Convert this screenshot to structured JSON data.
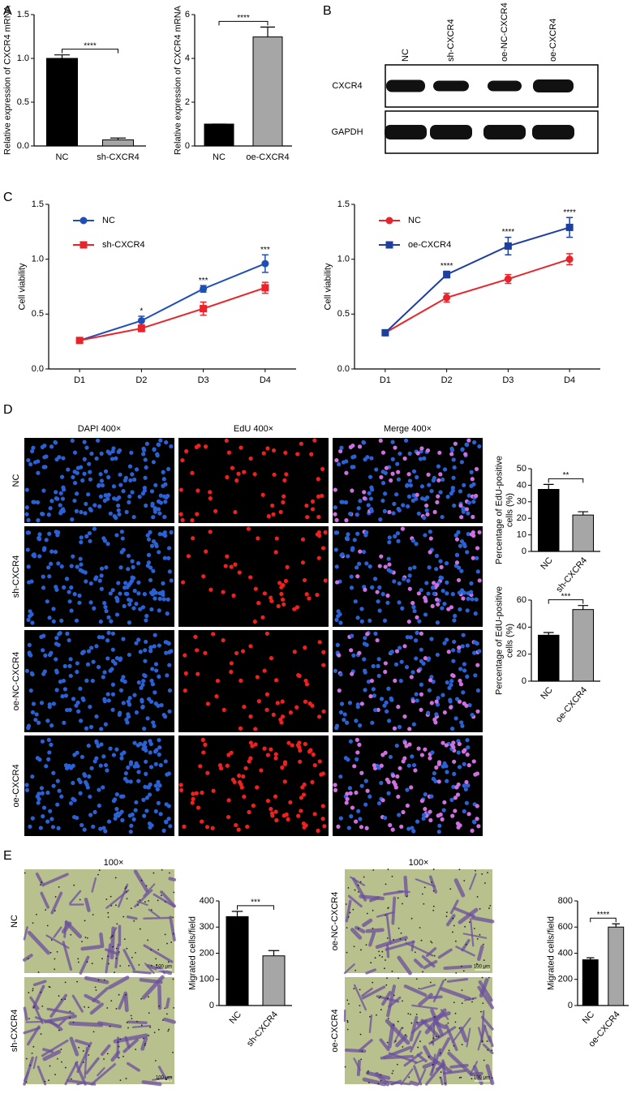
{
  "panel_labels": [
    "A",
    "B",
    "C",
    "D",
    "E"
  ],
  "blot": {
    "lanes": [
      "NC",
      "sh-CXCR4",
      "oe-NC-CXCR4",
      "oe-CXCR4"
    ],
    "rows": [
      "CXCR4",
      "GAPDH"
    ]
  },
  "fluorescence": {
    "columns": [
      "DAPI 400×",
      "EdU 400×",
      "Merge 400×"
    ],
    "rows": [
      "NC",
      "sh-CXCR4",
      "oe-NC-CXCR4",
      "oe-CXCR4"
    ]
  },
  "migration": {
    "magnification": [
      "100×",
      "100×"
    ],
    "rows": [
      "NC",
      "sh-CXCR4",
      "oe-NC-CXCR4",
      "oe-CXCR4"
    ],
    "scale_bar": "100 μm"
  },
  "chart_data": [
    {
      "type": "bar",
      "y_label": "Relative expression of CXCR4 mRNA",
      "categories": [
        "NC",
        "sh-CXCR4"
      ],
      "values": [
        1.0,
        0.07
      ],
      "errors": [
        0.04,
        0.02
      ],
      "colors": [
        "#000000",
        "#a6a6a6"
      ],
      "ylim": [
        0,
        1.5
      ],
      "yticks": [
        {
          "value": 0,
          "label": "0.0"
        },
        0.5,
        {
          "value": 1,
          "label": "1.0"
        },
        1.5
      ],
      "annotation": "****"
    },
    {
      "type": "bar",
      "y_label": "Relative expression of CXCR4 mRNA",
      "categories": [
        "NC",
        "oe-CXCR4"
      ],
      "values": [
        1.0,
        4.98
      ],
      "errors": [
        0,
        0.45
      ],
      "colors": [
        "#000000",
        "#a6a6a6"
      ],
      "ylim": [
        0,
        6
      ],
      "yticks": [
        0,
        2,
        4,
        6
      ],
      "annotation": "****"
    },
    {
      "type": "line",
      "y_label": "Cell viability",
      "categories": [
        "D1",
        "D2",
        "D3",
        "D4"
      ],
      "ylim": [
        0,
        1.5
      ],
      "yticks": [
        {
          "value": 0,
          "label": "0.0"
        },
        0.5,
        {
          "value": 1,
          "label": "1.0"
        },
        1.5
      ],
      "series": [
        {
          "name": "NC",
          "color": "#1f4fb5",
          "marker": "circle",
          "values": [
            0.26,
            0.44,
            0.73,
            0.96
          ],
          "errors": [
            0.02,
            0.04,
            0.03,
            0.08
          ]
        },
        {
          "name": "sh-CXCR4",
          "color": "#e8242a",
          "marker": "square",
          "values": [
            0.26,
            0.37,
            0.55,
            0.74
          ],
          "errors": [
            0.02,
            0.03,
            0.06,
            0.05
          ]
        }
      ],
      "annotations": [
        null,
        "*",
        "***",
        "***"
      ]
    },
    {
      "type": "line",
      "y_label": "Cell viability",
      "categories": [
        "D1",
        "D2",
        "D3",
        "D4"
      ],
      "ylim": [
        0,
        1.5
      ],
      "yticks": [
        {
          "value": 0,
          "label": "0.0"
        },
        0.5,
        {
          "value": 1,
          "label": "1.0"
        },
        1.5
      ],
      "series": [
        {
          "name": "NC",
          "color": "#e8242a",
          "marker": "circle",
          "values": [
            0.33,
            0.65,
            0.82,
            1.0
          ],
          "errors": [
            0.02,
            0.04,
            0.04,
            0.05
          ]
        },
        {
          "name": "oe-CXCR4",
          "color": "#1f3f9e",
          "marker": "square",
          "values": [
            0.33,
            0.86,
            1.12,
            1.29
          ],
          "errors": [
            0.02,
            0.03,
            0.08,
            0.09
          ]
        }
      ],
      "annotations": [
        null,
        "****",
        "****",
        "****"
      ]
    },
    {
      "type": "bar",
      "y_label": [
        "Percentage of EdU-positive",
        "cells (%)"
      ],
      "categories": [
        "NC",
        "sh-CXCR4"
      ],
      "values": [
        37.5,
        22
      ],
      "errors": [
        3,
        2
      ],
      "colors": [
        "#000000",
        "#a6a6a6"
      ],
      "ylim": [
        0,
        50
      ],
      "yticks": [
        0,
        10,
        20,
        30,
        40,
        50
      ],
      "annotation": "**"
    },
    {
      "type": "bar",
      "y_label": [
        "Percentage of EdU-positive",
        "cells (%)"
      ],
      "categories": [
        "NC",
        "oe-CXCR4"
      ],
      "values": [
        34,
        53
      ],
      "errors": [
        2,
        3
      ],
      "colors": [
        "#000000",
        "#a6a6a6"
      ],
      "ylim": [
        0,
        60
      ],
      "yticks": [
        0,
        20,
        40,
        60
      ],
      "annotation": "***"
    },
    {
      "type": "bar",
      "y_label": "Migrated cells/field",
      "categories": [
        "NC",
        "sh-CXCR4"
      ],
      "values": [
        340,
        190
      ],
      "errors": [
        20,
        20
      ],
      "colors": [
        "#000000",
        "#a6a6a6"
      ],
      "ylim": [
        0,
        400
      ],
      "yticks": [
        0,
        100,
        200,
        300,
        400
      ],
      "annotation": "***"
    },
    {
      "type": "bar",
      "y_label": "Migrated cells/field",
      "categories": [
        "NC",
        "oe-CXCR4"
      ],
      "values": [
        350,
        600
      ],
      "errors": [
        15,
        25
      ],
      "colors": [
        "#000000",
        "#a6a6a6"
      ],
      "ylim": [
        0,
        800
      ],
      "yticks": [
        0,
        200,
        400,
        600,
        800
      ],
      "annotation": "****"
    }
  ]
}
